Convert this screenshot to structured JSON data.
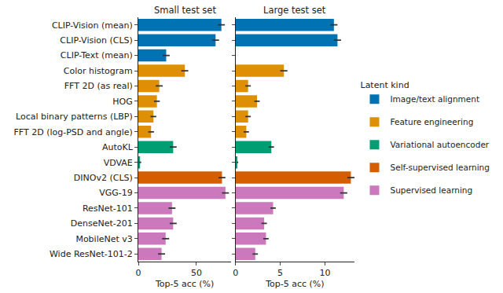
{
  "chart_data": [
    {
      "type": "bar",
      "orientation": "horizontal",
      "title": "Small test set",
      "xlabel": "Top-5 acc (%)",
      "categories": [
        "CLIP-Vision (mean)",
        "CLIP-Vision (CLS)",
        "CLIP-Text (mean)",
        "Color histogram",
        "FFT 2D (as real)",
        "HOG",
        "Local binary patterns (LBP)",
        "FFT 2D (log-PSD and angle)",
        "AutoKL",
        "VDVAE",
        "DINOv2 (CLS)",
        "VGG-19",
        "ResNet-101",
        "DenseNet-201",
        "MobileNet v3",
        "Wide ResNet-101-2"
      ],
      "values": [
        71.5,
        66.5,
        24,
        40,
        18,
        16,
        13,
        11,
        30,
        1.5,
        72,
        75,
        29,
        30,
        23.5,
        20
      ],
      "errors": [
        3,
        3,
        3,
        3,
        3,
        2.5,
        2.5,
        2.5,
        3,
        1,
        3,
        3,
        3,
        3,
        3,
        3
      ],
      "colors": [
        "#0173b2",
        "#0173b2",
        "#0173b2",
        "#de8f05",
        "#de8f05",
        "#de8f05",
        "#de8f05",
        "#de8f05",
        "#029e73",
        "#029e73",
        "#d55e00",
        "#cc78bc",
        "#cc78bc",
        "#cc78bc",
        "#cc78bc",
        "#cc78bc"
      ],
      "xlim": [
        0,
        80
      ],
      "xticks": [
        0,
        50
      ],
      "grid": false
    },
    {
      "type": "bar",
      "orientation": "horizontal",
      "title": "Large test set",
      "xlabel": "Top-5 acc (%)",
      "categories": [
        "CLIP-Vision (mean)",
        "CLIP-Vision (CLS)",
        "CLIP-Text (mean)",
        "Color histogram",
        "FFT 2D (as real)",
        "HOG",
        "Local binary patterns (LBP)",
        "FFT 2D (log-PSD and angle)",
        "AutoKL",
        "VDVAE",
        "DINOv2 (CLS)",
        "VGG-19",
        "ResNet-101",
        "DenseNet-201",
        "MobileNet v3",
        "Wide ResNet-101-2"
      ],
      "values": [
        11.0,
        11.4,
        null,
        5.4,
        1.4,
        2.4,
        1.4,
        1.2,
        4.0,
        0.2,
        12.9,
        12.1,
        4.2,
        3.2,
        3.4,
        2.2
      ],
      "errors": [
        0.4,
        0.4,
        null,
        0.4,
        0.3,
        0.3,
        0.3,
        0.3,
        0.3,
        0.1,
        0.4,
        0.4,
        0.3,
        0.3,
        0.3,
        0.3
      ],
      "colors": [
        "#0173b2",
        "#0173b2",
        "#0173b2",
        "#de8f05",
        "#de8f05",
        "#de8f05",
        "#de8f05",
        "#de8f05",
        "#029e73",
        "#029e73",
        "#d55e00",
        "#cc78bc",
        "#cc78bc",
        "#cc78bc",
        "#cc78bc",
        "#cc78bc"
      ],
      "xlim": [
        0,
        13.3
      ],
      "xticks": [
        0,
        5,
        10
      ],
      "grid": false
    }
  ],
  "legend_title": "Latent kind",
  "legend": "right",
  "groups": [
    {
      "name": "Image/text alignment",
      "color": "#0173b2"
    },
    {
      "name": "Feature engineering",
      "color": "#de8f05"
    },
    {
      "name": "Variational autoencoder",
      "color": "#029e73"
    },
    {
      "name": "Self-supervised learning",
      "color": "#d55e00"
    },
    {
      "name": "Supervised learning",
      "color": "#cc78bc"
    }
  ]
}
